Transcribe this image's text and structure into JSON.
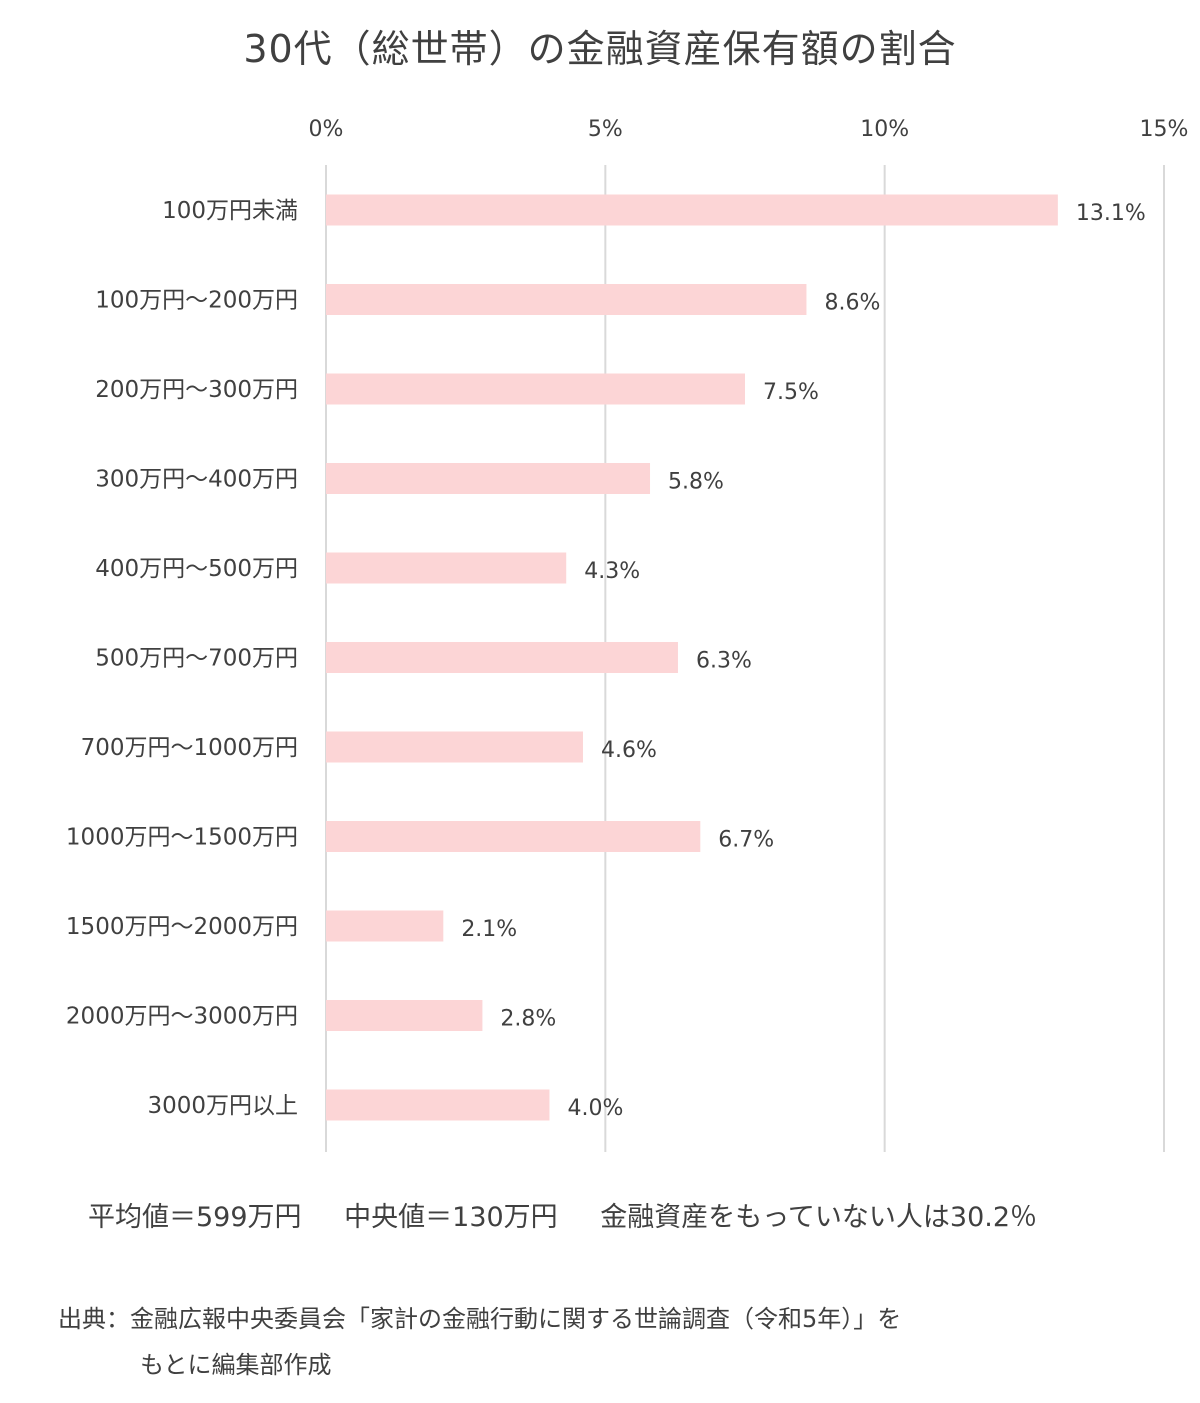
{
  "chart_data": {
    "type": "bar",
    "orientation": "horizontal",
    "title": "30代（総世帯）の金融資産保有額の割合",
    "categories": [
      "100万円未満",
      "100万円～200万円",
      "200万円～300万円",
      "300万円～400万円",
      "400万円～500万円",
      "500万円～700万円",
      "700万円～1000万円",
      "1000万円～1500万円",
      "1500万円～2000万円",
      "2000万円～3000万円",
      "3000万円以上"
    ],
    "values": [
      13.1,
      8.6,
      7.5,
      5.8,
      4.3,
      6.3,
      4.6,
      6.7,
      2.1,
      2.8,
      4.0
    ],
    "value_labels": [
      "13.1%",
      "8.6%",
      "7.5%",
      "5.8%",
      "4.3%",
      "6.3%",
      "4.6%",
      "6.7%",
      "2.1%",
      "2.8%",
      "4.0%"
    ],
    "xlim": [
      0,
      15
    ],
    "xticks": [
      0,
      5,
      10,
      15
    ],
    "xtick_labels": [
      "0%",
      "5%",
      "10%",
      "15%"
    ],
    "x_axis_position": "top",
    "grid": true,
    "bar_color": "#fcd5d6",
    "grid_color": "#d9d9d9",
    "text_color": "#404040"
  },
  "stats": {
    "mean": "平均値＝599万円",
    "median": "中央値＝130万円",
    "no_assets": "金融資産をもっていない人は30.2％"
  },
  "source": {
    "line1": "出典：金融広報中央委員会「家計の金融行動に関する世論調査（令和5年）」を",
    "line2": "もとに編集部作成"
  }
}
